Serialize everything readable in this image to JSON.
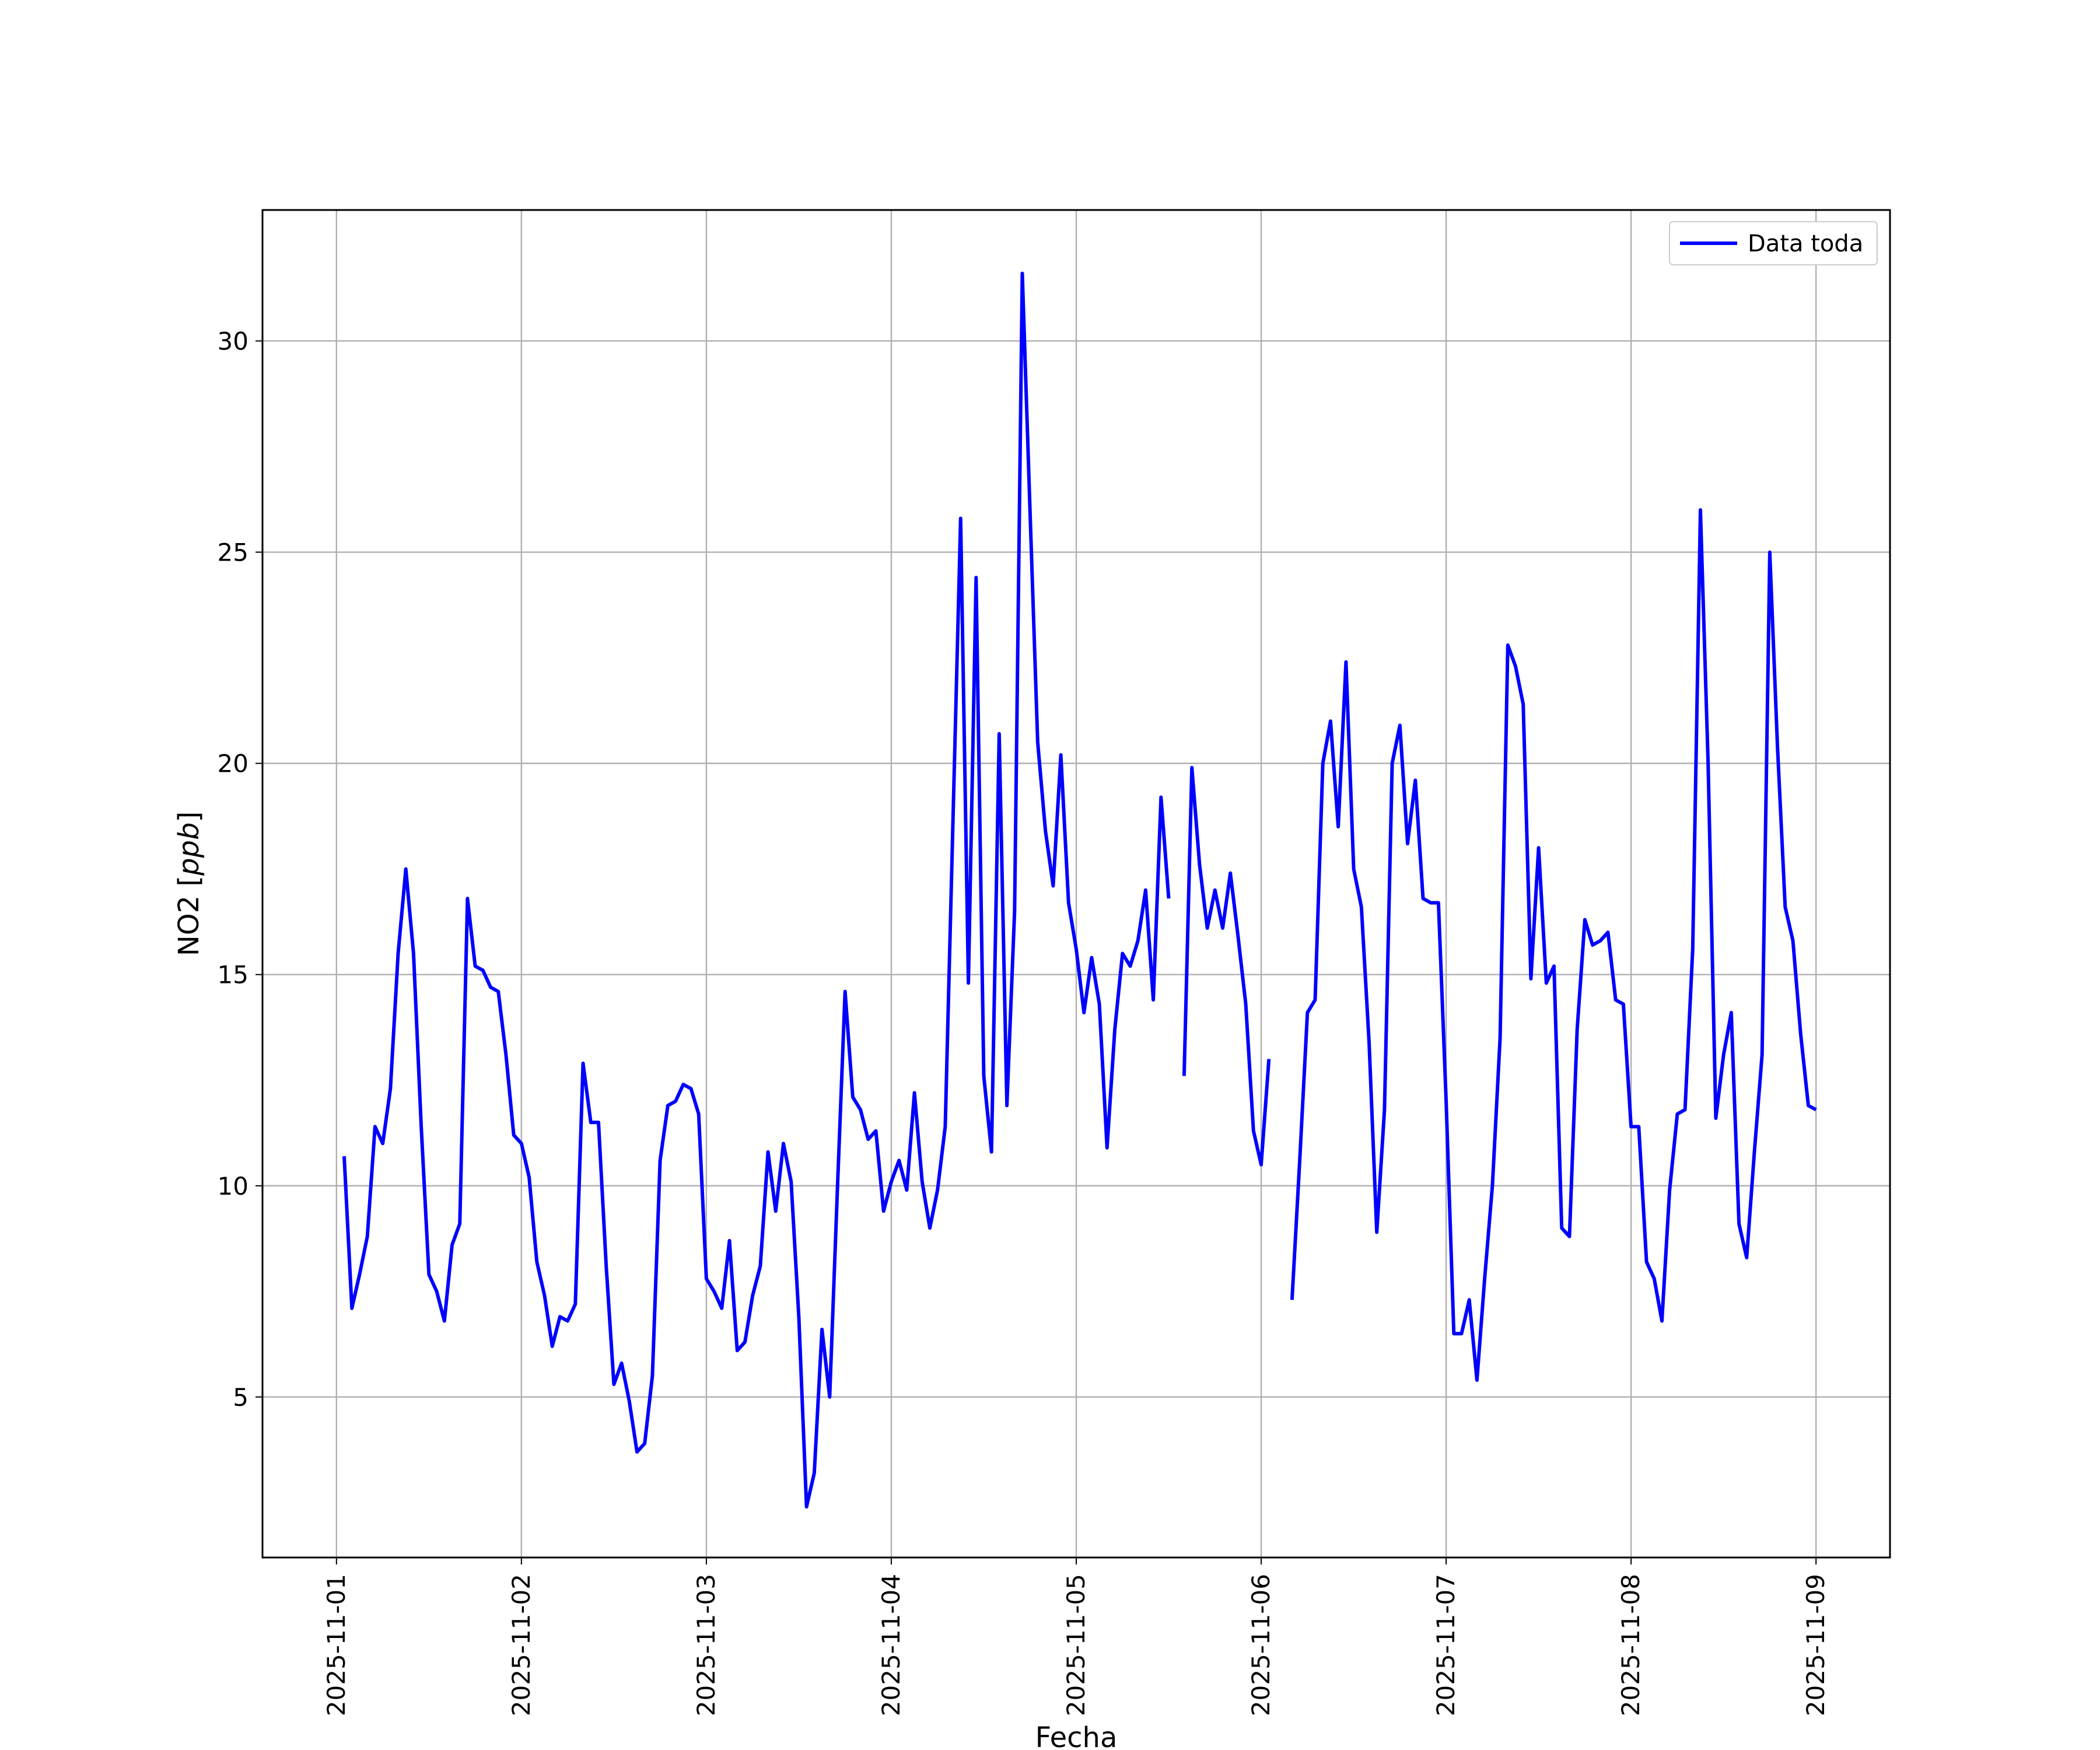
{
  "chart_data": {
    "type": "line",
    "xlabel": "Fecha",
    "ylabel": "NO2 [ppb]",
    "ylabel_main": "NO2 [",
    "ylabel_unit": "ppb",
    "ylabel_close": "]",
    "xlim": [
      "2025-10-31T14:24",
      "2025-11-09T09:36"
    ],
    "ylim": [
      1.2,
      33.1
    ],
    "grid": true,
    "legend": {
      "placement": "top-right",
      "entries": [
        "Data toda"
      ]
    },
    "x_ticks": [
      "2025-11-01",
      "2025-11-02",
      "2025-11-03",
      "2025-11-04",
      "2025-11-05",
      "2025-11-06",
      "2025-11-07",
      "2025-11-08",
      "2025-11-09"
    ],
    "y_ticks": [
      5,
      10,
      15,
      20,
      25,
      30
    ],
    "y_tick_labels": [
      "5",
      "10",
      "15",
      "20",
      "25",
      "30"
    ],
    "series": [
      {
        "name": "Data toda",
        "color": "#0000ff",
        "points": [
          [
            "2025-11-01T01:00",
            10.7
          ],
          [
            "2025-11-01T02:00",
            7.1
          ],
          [
            "2025-11-01T03:00",
            7.9
          ],
          [
            "2025-11-01T04:00",
            8.8
          ],
          [
            "2025-11-01T05:00",
            11.4
          ],
          [
            "2025-11-01T06:00",
            11.0
          ],
          [
            "2025-11-01T07:00",
            12.3
          ],
          [
            "2025-11-01T08:00",
            15.5
          ],
          [
            "2025-11-01T09:00",
            17.5
          ],
          [
            "2025-11-01T10:00",
            15.5
          ],
          [
            "2025-11-01T11:00",
            11.4
          ],
          [
            "2025-11-01T12:00",
            7.9
          ],
          [
            "2025-11-01T13:00",
            7.5
          ],
          [
            "2025-11-01T14:00",
            6.8
          ],
          [
            "2025-11-01T15:00",
            8.6
          ],
          [
            "2025-11-01T16:00",
            9.1
          ],
          [
            "2025-11-01T17:00",
            16.8
          ],
          [
            "2025-11-01T18:00",
            15.2
          ],
          [
            "2025-11-01T19:00",
            15.1
          ],
          [
            "2025-11-01T20:00",
            14.7
          ],
          [
            "2025-11-01T21:00",
            14.6
          ],
          [
            "2025-11-01T22:00",
            13.1
          ],
          [
            "2025-11-01T23:00",
            11.2
          ],
          [
            "2025-11-02T00:00",
            11.0
          ],
          [
            "2025-11-02T01:00",
            10.2
          ],
          [
            "2025-11-02T02:00",
            8.2
          ],
          [
            "2025-11-02T03:00",
            7.4
          ],
          [
            "2025-11-02T04:00",
            6.2
          ],
          [
            "2025-11-02T05:00",
            6.9
          ],
          [
            "2025-11-02T06:00",
            6.8
          ],
          [
            "2025-11-02T07:00",
            7.2
          ],
          [
            "2025-11-02T08:00",
            12.9
          ],
          [
            "2025-11-02T09:00",
            11.5
          ],
          [
            "2025-11-02T10:00",
            11.5
          ],
          [
            "2025-11-02T11:00",
            8.1
          ],
          [
            "2025-11-02T12:00",
            5.3
          ],
          [
            "2025-11-02T13:00",
            5.8
          ],
          [
            "2025-11-02T14:00",
            4.9
          ],
          [
            "2025-11-02T15:00",
            3.7
          ],
          [
            "2025-11-02T16:00",
            3.9
          ],
          [
            "2025-11-02T17:00",
            5.5
          ],
          [
            "2025-11-02T18:00",
            10.6
          ],
          [
            "2025-11-02T19:00",
            11.9
          ],
          [
            "2025-11-02T20:00",
            12.0
          ],
          [
            "2025-11-02T21:00",
            12.4
          ],
          [
            "2025-11-02T22:00",
            12.3
          ],
          [
            "2025-11-02T23:00",
            11.7
          ],
          [
            "2025-11-03T00:00",
            7.8
          ],
          [
            "2025-11-03T01:00",
            7.5
          ],
          [
            "2025-11-03T02:00",
            7.1
          ],
          [
            "2025-11-03T03:00",
            8.7
          ],
          [
            "2025-11-03T04:00",
            6.1
          ],
          [
            "2025-11-03T05:00",
            6.3
          ],
          [
            "2025-11-03T06:00",
            7.4
          ],
          [
            "2025-11-03T07:00",
            8.1
          ],
          [
            "2025-11-03T08:00",
            10.8
          ],
          [
            "2025-11-03T09:00",
            9.4
          ],
          [
            "2025-11-03T10:00",
            11.0
          ],
          [
            "2025-11-03T11:00",
            10.1
          ],
          [
            "2025-11-03T12:00",
            6.9
          ],
          [
            "2025-11-03T13:00",
            2.4
          ],
          [
            "2025-11-03T14:00",
            3.2
          ],
          [
            "2025-11-03T15:00",
            6.6
          ],
          [
            "2025-11-03T16:00",
            5.0
          ],
          [
            "2025-11-03T17:00",
            9.9
          ],
          [
            "2025-11-03T18:00",
            14.6
          ],
          [
            "2025-11-03T19:00",
            12.1
          ],
          [
            "2025-11-03T20:00",
            11.8
          ],
          [
            "2025-11-03T21:00",
            11.1
          ],
          [
            "2025-11-03T22:00",
            11.3
          ],
          [
            "2025-11-03T23:00",
            9.4
          ],
          [
            "2025-11-04T00:00",
            10.1
          ],
          [
            "2025-11-04T01:00",
            10.6
          ],
          [
            "2025-11-04T02:00",
            9.9
          ],
          [
            "2025-11-04T03:00",
            12.2
          ],
          [
            "2025-11-04T04:00",
            10.1
          ],
          [
            "2025-11-04T05:00",
            9.0
          ],
          [
            "2025-11-04T06:00",
            9.9
          ],
          [
            "2025-11-04T07:00",
            11.4
          ],
          [
            "2025-11-04T08:00",
            18.6
          ],
          [
            "2025-11-04T09:00",
            25.8
          ],
          [
            "2025-11-04T10:00",
            14.8
          ],
          [
            "2025-11-04T11:00",
            24.4
          ],
          [
            "2025-11-04T12:00",
            12.6
          ],
          [
            "2025-11-04T13:00",
            10.8
          ],
          [
            "2025-11-04T14:00",
            20.7
          ],
          [
            "2025-11-04T15:00",
            11.9
          ],
          [
            "2025-11-04T16:00",
            16.5
          ],
          [
            "2025-11-04T17:00",
            31.6
          ],
          [
            "2025-11-04T18:00",
            26.0
          ],
          [
            "2025-11-04T19:00",
            20.5
          ],
          [
            "2025-11-04T20:00",
            18.4
          ],
          [
            "2025-11-04T21:00",
            17.1
          ],
          [
            "2025-11-04T22:00",
            20.2
          ],
          [
            "2025-11-04T23:00",
            16.7
          ],
          [
            "2025-11-05T00:00",
            15.6
          ],
          [
            "2025-11-05T01:00",
            14.1
          ],
          [
            "2025-11-05T02:00",
            15.4
          ],
          [
            "2025-11-05T03:00",
            14.3
          ],
          [
            "2025-11-05T04:00",
            10.9
          ],
          [
            "2025-11-05T05:00",
            13.7
          ],
          [
            "2025-11-05T06:00",
            15.5
          ],
          [
            "2025-11-05T07:00",
            15.2
          ],
          [
            "2025-11-05T08:00",
            15.8
          ],
          [
            "2025-11-05T09:00",
            17.0
          ],
          [
            "2025-11-05T10:00",
            14.4
          ],
          [
            "2025-11-05T11:00",
            19.2
          ],
          [
            "2025-11-05T12:00",
            16.8
          ],
          null,
          [
            "2025-11-05T14:00",
            12.6
          ],
          [
            "2025-11-05T15:00",
            19.9
          ],
          [
            "2025-11-05T16:00",
            17.6
          ],
          [
            "2025-11-05T17:00",
            16.1
          ],
          [
            "2025-11-05T18:00",
            17.0
          ],
          [
            "2025-11-05T19:00",
            16.1
          ],
          [
            "2025-11-05T20:00",
            17.4
          ],
          [
            "2025-11-05T21:00",
            15.9
          ],
          [
            "2025-11-05T22:00",
            14.3
          ],
          [
            "2025-11-05T23:00",
            11.3
          ],
          [
            "2025-11-06T00:00",
            10.5
          ],
          [
            "2025-11-06T01:00",
            13.0
          ],
          null,
          [
            "2025-11-06T04:00",
            7.3
          ],
          [
            "2025-11-06T05:00",
            10.6
          ],
          [
            "2025-11-06T06:00",
            14.1
          ],
          [
            "2025-11-06T07:00",
            14.4
          ],
          [
            "2025-11-06T08:00",
            20.0
          ],
          [
            "2025-11-06T09:00",
            21.0
          ],
          [
            "2025-11-06T10:00",
            18.5
          ],
          [
            "2025-11-06T11:00",
            22.4
          ],
          [
            "2025-11-06T12:00",
            17.5
          ],
          [
            "2025-11-06T13:00",
            16.6
          ],
          [
            "2025-11-06T14:00",
            13.4
          ],
          [
            "2025-11-06T15:00",
            8.9
          ],
          [
            "2025-11-06T16:00",
            11.8
          ],
          [
            "2025-11-06T17:00",
            20.0
          ],
          [
            "2025-11-06T18:00",
            20.9
          ],
          [
            "2025-11-06T19:00",
            18.1
          ],
          [
            "2025-11-06T20:00",
            19.6
          ],
          [
            "2025-11-06T21:00",
            16.8
          ],
          [
            "2025-11-06T22:00",
            16.7
          ],
          [
            "2025-11-06T23:00",
            16.7
          ],
          [
            "2025-11-07T00:00",
            12.0
          ],
          [
            "2025-11-07T01:00",
            6.5
          ],
          [
            "2025-11-07T02:00",
            6.5
          ],
          [
            "2025-11-07T03:00",
            7.3
          ],
          [
            "2025-11-07T04:00",
            5.4
          ],
          [
            "2025-11-07T05:00",
            7.8
          ],
          [
            "2025-11-07T06:00",
            10.0
          ],
          [
            "2025-11-07T07:00",
            13.5
          ],
          [
            "2025-11-07T08:00",
            22.8
          ],
          [
            "2025-11-07T09:00",
            22.3
          ],
          [
            "2025-11-07T10:00",
            21.4
          ],
          [
            "2025-11-07T11:00",
            14.9
          ],
          [
            "2025-11-07T12:00",
            18.0
          ],
          [
            "2025-11-07T13:00",
            14.8
          ],
          [
            "2025-11-07T14:00",
            15.2
          ],
          [
            "2025-11-07T15:00",
            9.0
          ],
          [
            "2025-11-07T16:00",
            8.8
          ],
          [
            "2025-11-07T17:00",
            13.7
          ],
          [
            "2025-11-07T18:00",
            16.3
          ],
          [
            "2025-11-07T19:00",
            15.7
          ],
          [
            "2025-11-07T20:00",
            15.8
          ],
          [
            "2025-11-07T21:00",
            16.0
          ],
          [
            "2025-11-07T22:00",
            14.4
          ],
          [
            "2025-11-07T23:00",
            14.3
          ],
          [
            "2025-11-08T00:00",
            11.4
          ],
          [
            "2025-11-08T01:00",
            11.4
          ],
          [
            "2025-11-08T02:00",
            8.2
          ],
          [
            "2025-11-08T03:00",
            7.8
          ],
          [
            "2025-11-08T04:00",
            6.8
          ],
          [
            "2025-11-08T05:00",
            9.9
          ],
          [
            "2025-11-08T06:00",
            11.7
          ],
          [
            "2025-11-08T07:00",
            11.8
          ],
          [
            "2025-11-08T08:00",
            15.6
          ],
          [
            "2025-11-08T09:00",
            26.0
          ],
          [
            "2025-11-08T10:00",
            20.0
          ],
          [
            "2025-11-08T11:00",
            11.6
          ],
          [
            "2025-11-08T12:00",
            13.1
          ],
          [
            "2025-11-08T13:00",
            14.1
          ],
          [
            "2025-11-08T14:00",
            9.1
          ],
          [
            "2025-11-08T15:00",
            8.3
          ],
          [
            "2025-11-08T16:00",
            10.8
          ],
          [
            "2025-11-08T17:00",
            13.1
          ],
          [
            "2025-11-08T18:00",
            25.0
          ],
          [
            "2025-11-08T19:00",
            20.4
          ],
          [
            "2025-11-08T20:00",
            16.6
          ],
          [
            "2025-11-08T21:00",
            15.8
          ],
          [
            "2025-11-08T22:00",
            13.6
          ],
          [
            "2025-11-08T23:00",
            11.9
          ],
          [
            "2025-11-09T00:00",
            11.8
          ]
        ]
      }
    ]
  }
}
